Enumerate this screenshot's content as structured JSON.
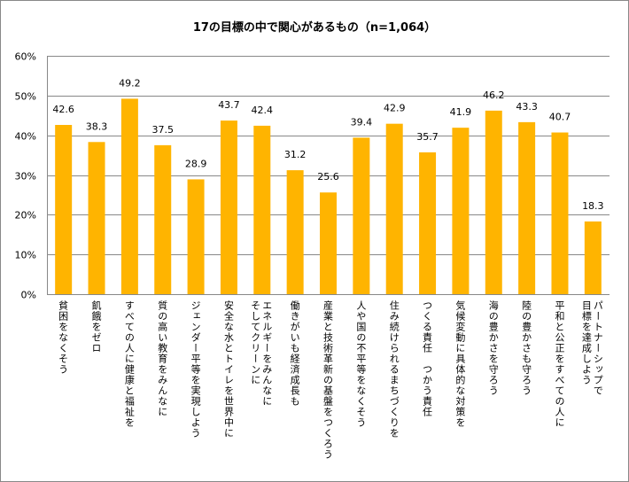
{
  "chart_data": {
    "type": "bar",
    "title": "17の目標の中で関心があるもの（n=1,064）",
    "xlabel": "",
    "ylabel": "",
    "ylim": [
      0,
      60
    ],
    "yticks": [
      "0%",
      "10%",
      "20%",
      "30%",
      "40%",
      "50%",
      "60%"
    ],
    "grid": true,
    "bar_color": "#FFB400",
    "categories": [
      "貧困をなくそう",
      "飢餓をゼロ",
      "すべての人に健康と福祉を",
      "質の高い教育をみんなに",
      "ジェンダー平等を実現しよう",
      "安全な水とトイレを世界中に",
      "エネルギーをみんなに\nそしてクリーンに",
      "働きがいも経済成長も",
      "産業と技術革新の基盤をつくろう",
      "人や国の不平等をなくそう",
      "住み続けられるまちづくりを",
      "つくる責任　つかう責任",
      "気候変動に具体的な対策を",
      "海の豊かさを守ろう",
      "陸の豊かさも守ろう",
      "平和と公正をすべての人に",
      "パートナーシップで\n目標を達成しよう"
    ],
    "values": [
      42.6,
      38.3,
      49.2,
      37.5,
      28.9,
      43.7,
      42.4,
      31.2,
      25.6,
      39.4,
      42.9,
      35.7,
      41.9,
      46.2,
      43.3,
      40.7,
      18.3
    ]
  }
}
